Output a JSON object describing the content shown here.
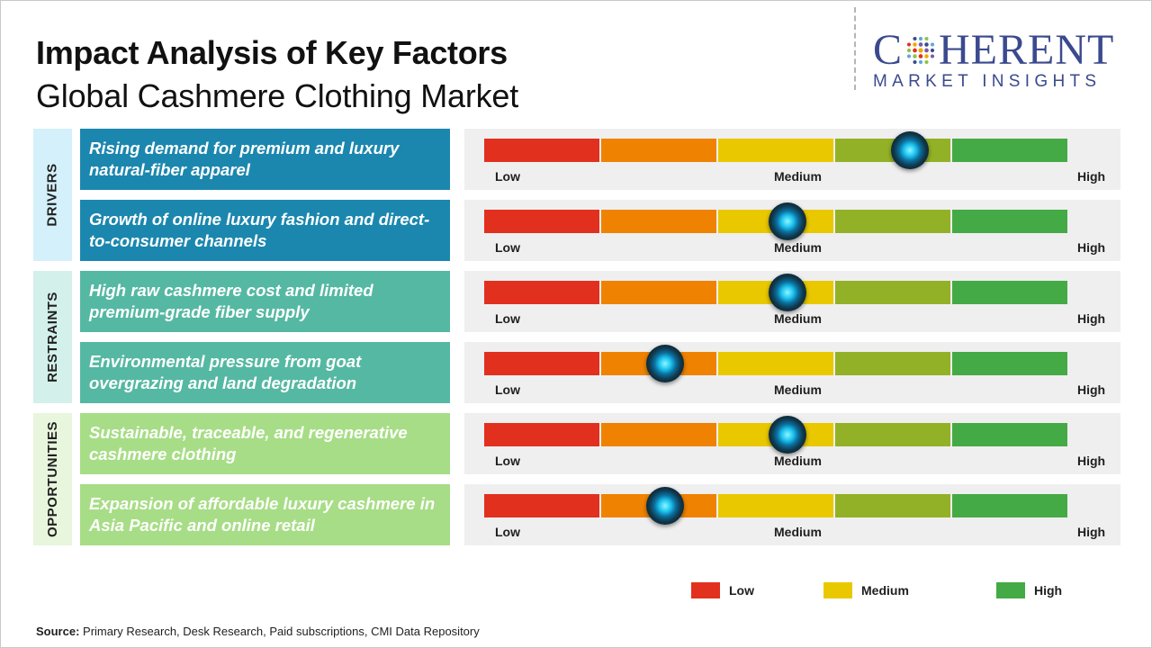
{
  "title": "Impact Analysis of Key Factors",
  "subtitle": "Global Cashmere Clothing Market",
  "logo": {
    "main_left": "C",
    "main_right": "HERENT",
    "sub": "MARKET INSIGHTS",
    "color": "#3b4a8e"
  },
  "colors": {
    "drivers": "#1b87ae",
    "restraints": "#55b8a2",
    "opportunities": "#a7dd86",
    "drivers_tab": "#d4f0fa",
    "restraints_tab": "#d3f0ea",
    "opportunities_tab": "#e7f6dd",
    "scale": [
      "#e2301f",
      "#ef8200",
      "#e9c800",
      "#93b126",
      "#44aa45"
    ],
    "track_bg": "#efefef"
  },
  "groups": [
    {
      "label": "DRIVERS",
      "key": "drivers"
    },
    {
      "label": "RESTRAINTS",
      "key": "restraints"
    },
    {
      "label": "OPPORTUNITIES",
      "key": "opportunities"
    }
  ],
  "scale_labels": {
    "low": "Low",
    "medium": "Medium",
    "high": "High"
  },
  "legend": [
    {
      "label": "Low",
      "color": "#e2301f"
    },
    {
      "label": "Medium",
      "color": "#e9c800"
    },
    {
      "label": "High",
      "color": "#44aa45"
    }
  ],
  "source": {
    "label": "Source:",
    "text": "Primary Research, Desk Research, Paid subscriptions, CMI Data Repository"
  },
  "chart_data": {
    "type": "bar",
    "title": "Impact Analysis of Key Factors",
    "subtitle": "Global Cashmere Clothing Market",
    "scale": [
      "Low",
      "Medium",
      "High"
    ],
    "value_range": [
      0,
      1
    ],
    "factors": [
      {
        "group": "DRIVERS",
        "text": "Rising demand for premium and luxury natural-fiber apparel",
        "impact": 0.73
      },
      {
        "group": "DRIVERS",
        "text": "Growth of online luxury fashion and direct-to-consumer channels",
        "impact": 0.52
      },
      {
        "group": "RESTRAINTS",
        "text": "High raw cashmere cost and limited premium-grade fiber supply",
        "impact": 0.52
      },
      {
        "group": "RESTRAINTS",
        "text": "Environmental pressure from goat overgrazing and land degradation",
        "impact": 0.31
      },
      {
        "group": "OPPORTUNITIES",
        "text": "Sustainable, traceable, and regenerative cashmere clothing",
        "impact": 0.52
      },
      {
        "group": "OPPORTUNITIES",
        "text": "Expansion of affordable luxury cashmere in Asia Pacific and online retail",
        "impact": 0.31
      }
    ]
  }
}
